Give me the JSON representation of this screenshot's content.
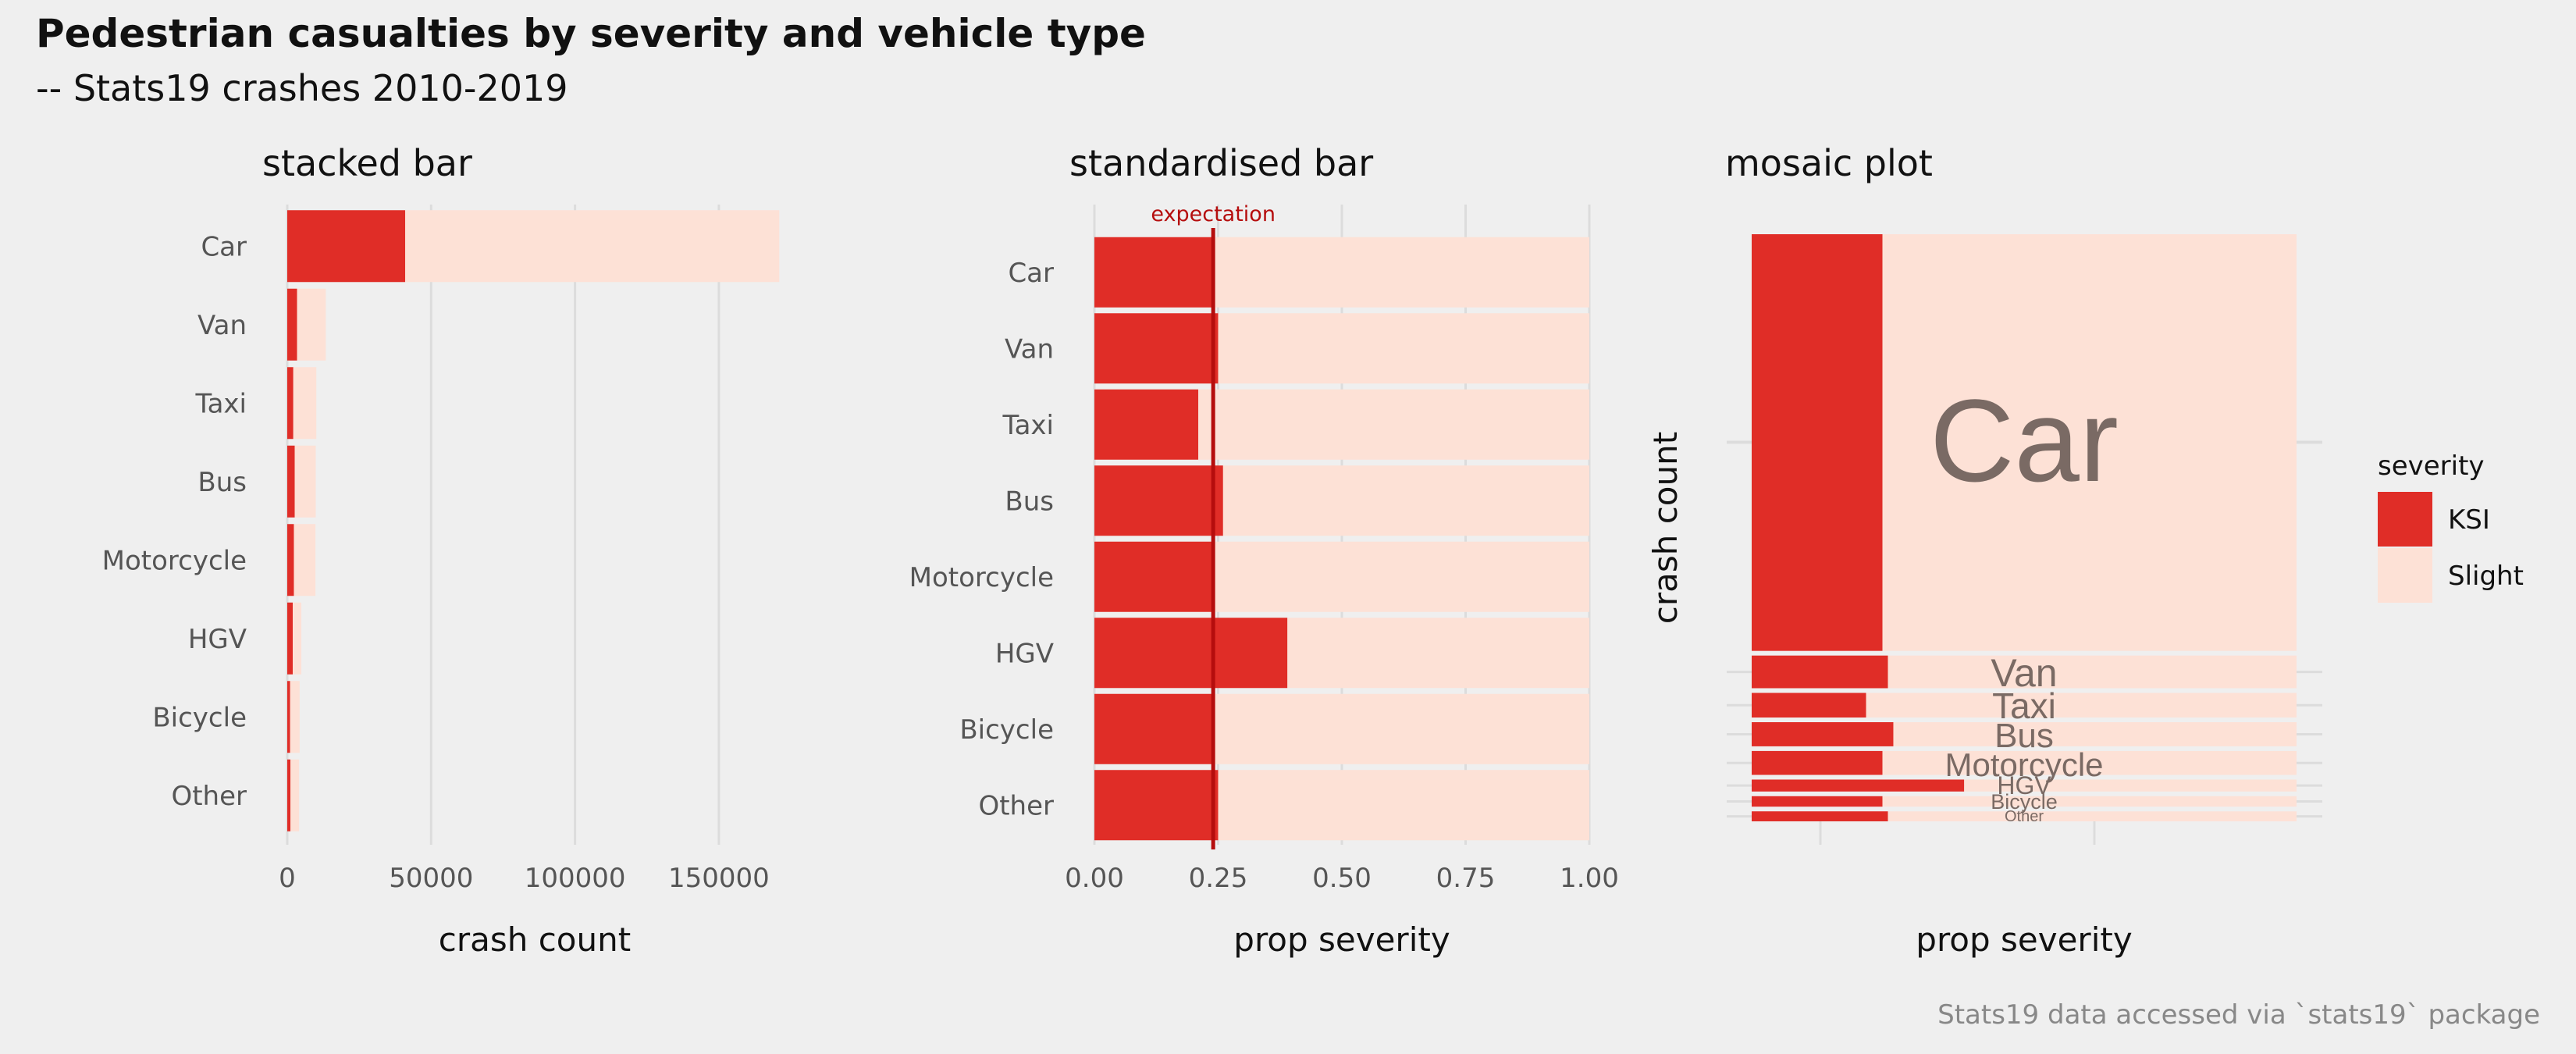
{
  "title": "Pedestrian casualties by severity and vehicle type",
  "subtitle": "-- Stats19 crashes 2010-2019",
  "caption": "Stats19 data accessed via `stats19` package",
  "colors": {
    "KSI": "#e02d27",
    "Slight": "#fde1d6",
    "label": "#7a6a64",
    "expectation": "#b50d0d"
  },
  "legend": {
    "title": "severity",
    "items": [
      "KSI",
      "Slight"
    ]
  },
  "chart_data": [
    {
      "type": "bar",
      "title": "stacked bar",
      "xlabel": "crash count",
      "ylabel": "",
      "categories": [
        "Car",
        "Van",
        "Taxi",
        "Bus",
        "Motorcycle",
        "HGV",
        "Bicycle",
        "Other"
      ],
      "series": [
        {
          "name": "KSI",
          "values": [
            41000,
            3400,
            2100,
            2600,
            2300,
            1900,
            1000,
            1100
          ]
        },
        {
          "name": "Slight",
          "values": [
            130000,
            10000,
            8000,
            7300,
            7500,
            3000,
            3300,
            3000
          ]
        }
      ],
      "xlim": [
        0,
        172000
      ],
      "xticks": [
        0,
        50000,
        100000,
        150000
      ],
      "xtick_labels": [
        "0",
        "50000",
        "100000",
        "150000"
      ]
    },
    {
      "type": "bar",
      "title": "standardised bar",
      "xlabel": "prop severity",
      "ylabel": "",
      "categories": [
        "Car",
        "Van",
        "Taxi",
        "Bus",
        "Motorcycle",
        "HGV",
        "Bicycle",
        "Other"
      ],
      "series": [
        {
          "name": "KSI",
          "values": [
            0.24,
            0.25,
            0.21,
            0.26,
            0.24,
            0.39,
            0.24,
            0.25
          ]
        },
        {
          "name": "Slight",
          "values": [
            0.76,
            0.75,
            0.79,
            0.74,
            0.76,
            0.61,
            0.76,
            0.75
          ]
        }
      ],
      "xlim": [
        0,
        1
      ],
      "xticks": [
        0,
        0.25,
        0.5,
        0.75,
        1
      ],
      "xtick_labels": [
        "0.00",
        "0.25",
        "0.50",
        "0.75",
        "1.00"
      ],
      "annotation": {
        "label": "expectation",
        "x": 0.24
      }
    },
    {
      "type": "mosaic",
      "title": "mosaic plot",
      "xlabel": "prop severity",
      "ylabel": "crash count",
      "categories": [
        "Car",
        "Van",
        "Taxi",
        "Bus",
        "Motorcycle",
        "HGV",
        "Bicycle",
        "Other"
      ],
      "totals": [
        171000,
        13400,
        10100,
        9900,
        9800,
        4900,
        4300,
        4100
      ],
      "ksi_prop": [
        0.24,
        0.25,
        0.21,
        0.26,
        0.24,
        0.39,
        0.24,
        0.25
      ]
    }
  ]
}
